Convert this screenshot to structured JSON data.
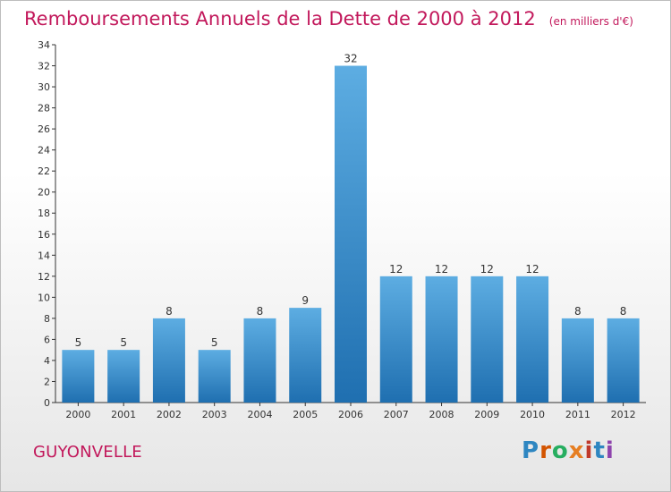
{
  "title": "Remboursements Annuels de la Dette de 2000 à 2012",
  "unit": "(en milliers d'€)",
  "commune": "GUYONVELLE",
  "logo": {
    "text": "Proxiti",
    "letter_colors": [
      "#2e86c1",
      "#d35400",
      "#27ae60",
      "#e67e22",
      "#c0392b",
      "#2e86c1",
      "#8e44ad"
    ]
  },
  "colors": {
    "bar_light": "#5dade2",
    "bar_dark": "#1f6fb0",
    "title": "#c2185b",
    "axis": "#333333"
  },
  "chart_data": {
    "type": "bar",
    "categories": [
      "2000",
      "2001",
      "2002",
      "2003",
      "2004",
      "2005",
      "2006",
      "2007",
      "2008",
      "2009",
      "2010",
      "2011",
      "2012"
    ],
    "values": [
      5,
      5,
      8,
      5,
      8,
      9,
      32,
      12,
      12,
      12,
      12,
      8,
      8
    ],
    "data_labels": [
      "5",
      "5",
      "8",
      "5",
      "8",
      "9",
      "32",
      "12",
      "12",
      "12",
      "12",
      "8",
      "8"
    ],
    "title": "Remboursements Annuels de la Dette de 2000 à 2012",
    "xlabel": "",
    "ylabel": "",
    "ylim": [
      0,
      34
    ],
    "yticks": [
      "0",
      "2",
      "4",
      "6",
      "8",
      "10",
      "12",
      "14",
      "16",
      "18",
      "20",
      "22",
      "24",
      "26",
      "28",
      "30",
      "32",
      "34"
    ],
    "grid": false,
    "legend": "none"
  }
}
